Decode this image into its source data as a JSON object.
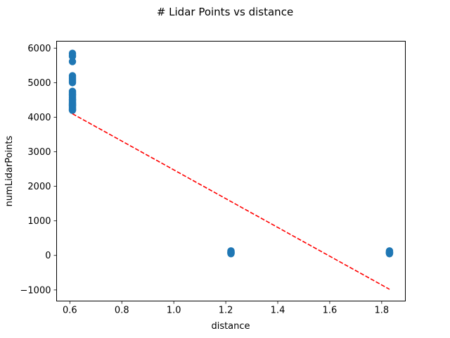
{
  "chart_data": {
    "type": "scatter",
    "title": "# Lidar Points vs distance",
    "xlabel": "distance",
    "ylabel": "numLidarPoints",
    "xlim": [
      0.549,
      1.891
    ],
    "ylim": [
      -1320,
      6200
    ],
    "xticks": [
      0.6,
      0.8,
      1.0,
      1.2,
      1.4,
      1.6,
      1.8
    ],
    "xtick_labels": [
      "0.6",
      "0.8",
      "1.0",
      "1.2",
      "1.4",
      "1.6",
      "1.8"
    ],
    "yticks": [
      -1000,
      0,
      1000,
      2000,
      3000,
      4000,
      5000,
      6000
    ],
    "ytick_labels": [
      "−1000",
      "0",
      "1000",
      "2000",
      "3000",
      "4000",
      "5000",
      "6000"
    ],
    "grid": false,
    "series": [
      {
        "kind": "scatter",
        "color": "#1f77b4",
        "x": [
          0.61,
          0.61,
          0.61,
          0.61,
          0.61,
          0.61,
          0.61,
          0.61,
          0.61,
          0.61,
          0.61,
          0.61,
          0.61,
          0.61,
          0.61,
          0.61,
          0.61,
          0.61,
          0.61,
          0.61,
          0.61,
          0.61,
          0.61,
          0.61,
          0.61,
          0.61,
          0.61,
          0.61,
          0.61,
          0.61,
          0.61,
          0.61,
          0.61,
          0.61,
          0.61,
          0.61,
          0.61,
          1.22,
          1.22,
          1.22,
          1.22,
          1.22,
          1.22,
          1.22,
          1.83,
          1.83,
          1.83,
          1.83,
          1.83,
          1.83,
          1.83
        ],
        "y": [
          5850,
          5800,
          5760,
          5610,
          5200,
          5160,
          5120,
          5080,
          5040,
          5000,
          4750,
          4720,
          4690,
          4660,
          4630,
          4600,
          4570,
          4540,
          4510,
          4480,
          4450,
          4420,
          4400,
          4380,
          4360,
          4340,
          4320,
          4300,
          4280,
          4260,
          4240,
          4220,
          4210,
          4200,
          4350,
          4500,
          4650,
          130,
          110,
          90,
          80,
          70,
          60,
          50,
          130,
          110,
          95,
          80,
          70,
          60,
          50
        ]
      },
      {
        "kind": "line",
        "style": "dashed",
        "color": "#ff0000",
        "x": [
          0.61,
          1.83
        ],
        "y": [
          4100,
          -980
        ]
      }
    ]
  }
}
